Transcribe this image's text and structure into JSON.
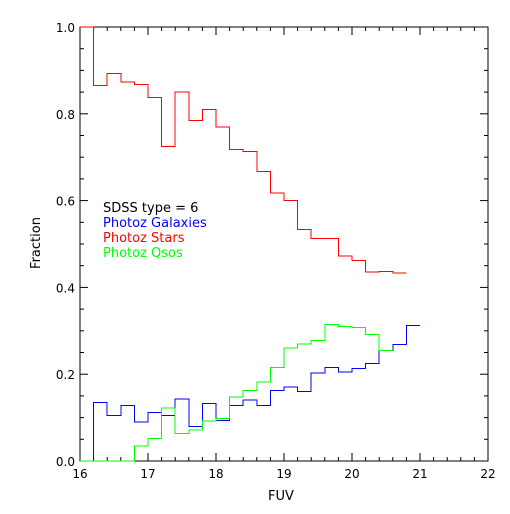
{
  "chart_data": {
    "type": "line",
    "title": "",
    "xlabel": "FUV",
    "ylabel": "Fraction",
    "xlim": [
      16,
      22
    ],
    "ylim": [
      0,
      1.0
    ],
    "grid": false,
    "x_ticks": [
      "16",
      "17",
      "18",
      "19",
      "20",
      "21",
      "22"
    ],
    "y_ticks": [
      "0.0",
      "0.2",
      "0.4",
      "0.6",
      "0.8",
      "1.0"
    ],
    "legend": {
      "placement": "middle-left",
      "header": "SDSS type = 6",
      "entries": [
        "Photoz Galaxies",
        "Photoz Stars",
        "Photoz Qsos"
      ]
    },
    "bin_edges": [
      16.0,
      16.2,
      16.4,
      16.6,
      16.8,
      17.0,
      17.2,
      17.4,
      17.6,
      17.8,
      18.0,
      18.2,
      18.4,
      18.6,
      18.8,
      19.0,
      19.2,
      19.4,
      19.6,
      19.8,
      20.0,
      20.2,
      20.4,
      20.6,
      20.8,
      21.0,
      21.2,
      21.4,
      21.6,
      21.8
    ],
    "series": [
      {
        "name": "Photoz Galaxies",
        "color": "#0000ff",
        "values": [
          0.0,
          0.135,
          0.105,
          0.128,
          0.09,
          0.112,
          0.105,
          0.143,
          0.08,
          0.132,
          0.093,
          0.128,
          0.14,
          0.128,
          0.163,
          0.17,
          0.16,
          0.203,
          0.215,
          0.205,
          0.213,
          0.225,
          0.255,
          0.268,
          0.312
        ]
      },
      {
        "name": "Photoz Stars",
        "color": "#ff0000",
        "values": [
          1.0,
          0.865,
          0.893,
          0.873,
          0.868,
          0.838,
          0.725,
          0.85,
          0.785,
          0.81,
          0.77,
          0.718,
          0.713,
          0.667,
          0.618,
          0.6,
          0.533,
          0.513,
          0.513,
          0.472,
          0.462,
          0.435,
          0.437,
          0.433
        ]
      },
      {
        "name": "Photoz Qsos",
        "color": "#00ff00",
        "values": [
          0.0,
          0.0,
          0.0,
          0.0,
          0.035,
          0.052,
          0.122,
          0.063,
          0.072,
          0.092,
          0.098,
          0.147,
          0.162,
          0.182,
          0.215,
          0.26,
          0.27,
          0.278,
          0.315,
          0.31,
          0.308,
          0.292,
          0.255
        ]
      }
    ]
  }
}
